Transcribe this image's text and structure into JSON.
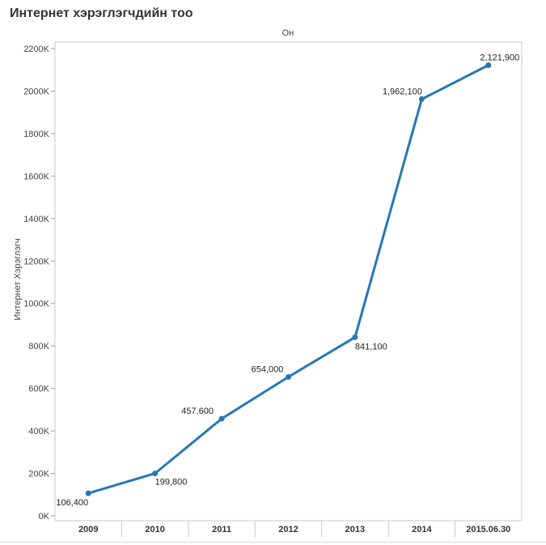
{
  "chart_data": {
    "type": "line",
    "title": "Интернет хэрэглэгчдийн тоо",
    "top_header": "Он",
    "ylabel": "Интернет Хэрэглэгч",
    "categories": [
      "2009",
      "2010",
      "2011",
      "2012",
      "2013",
      "2014",
      "2015.06.30"
    ],
    "series": [
      {
        "values": [
          106400,
          199800,
          457600,
          654000,
          841100,
          1962100,
          2121900
        ],
        "data_labels": [
          "106,400",
          "199,800",
          "457,600",
          "654,000",
          "841,100",
          "1,962,100",
          "2,121,900"
        ]
      }
    ],
    "ylim": [
      0,
      2200000
    ],
    "yticks": [
      0,
      200000,
      400000,
      600000,
      800000,
      1000000,
      1200000,
      1400000,
      1600000,
      1800000,
      2000000,
      2200000
    ],
    "ytick_labels": [
      "0K",
      "200K",
      "400K",
      "600K",
      "800K",
      "1000K",
      "1200K",
      "1400K",
      "1600K",
      "1800K",
      "2000K",
      "2200K"
    ],
    "colors": {
      "line": "#2677b5",
      "axis": "#c8c8c8"
    },
    "grid": false
  }
}
